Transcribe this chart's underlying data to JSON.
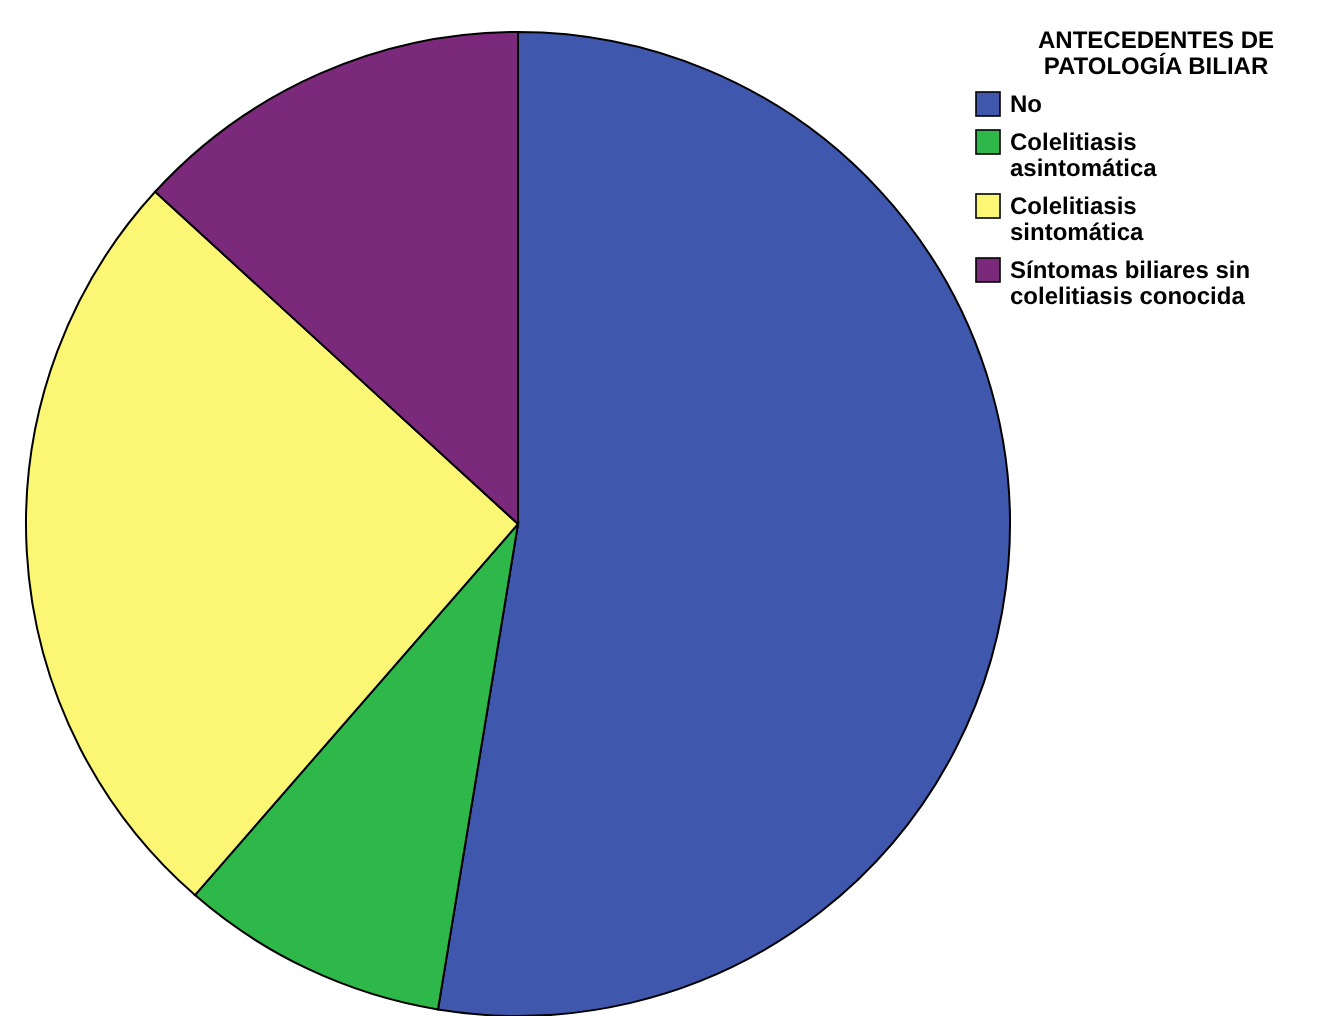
{
  "chart_data": {
    "type": "pie",
    "legend_title": "ANTECEDENTES DE PATOLOGÍA BILIAR",
    "legend": "top right",
    "categories": [
      "No",
      "Colelitiasis asintomática",
      "Colelitiasis sintomática",
      "Síntomas biliares sin colelitiasis conocida"
    ],
    "values": [
      52.6,
      8.8,
      25.4,
      13.2
    ],
    "colors": [
      "#3f58ad",
      "#2fb84a",
      "#fbf774",
      "#7b2a7b"
    ]
  }
}
